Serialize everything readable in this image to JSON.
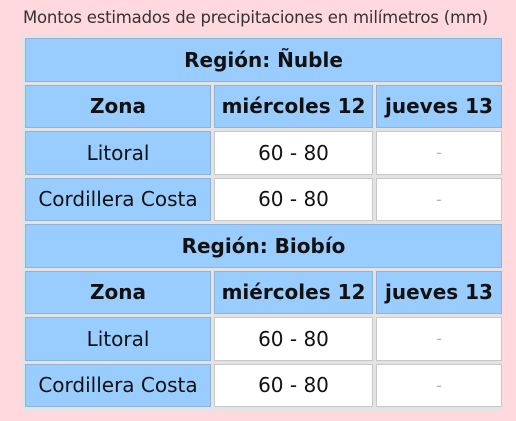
{
  "caption": "Montos estimados de precipitaciones en milímetros (mm)",
  "columns": [
    "Zona",
    "miércoles 12",
    "jueves 13"
  ],
  "regions": [
    {
      "title": "Región: Ñuble",
      "rows": [
        {
          "zona": "Litoral",
          "miercoles": "60 - 80",
          "jueves": "-"
        },
        {
          "zona": "Cordillera Costa",
          "miercoles": "60 - 80",
          "jueves": "-"
        }
      ]
    },
    {
      "title": "Región: Biobío",
      "rows": [
        {
          "zona": "Litoral",
          "miercoles": "60 - 80",
          "jueves": "-"
        },
        {
          "zona": "Cordillera Costa",
          "miercoles": "60 - 80",
          "jueves": "-"
        }
      ]
    }
  ],
  "colors": {
    "page_background": "#ffd9de",
    "header_cell": "#99ccff",
    "value_cell": "#ffffff",
    "grid": "#e3e3e3"
  }
}
